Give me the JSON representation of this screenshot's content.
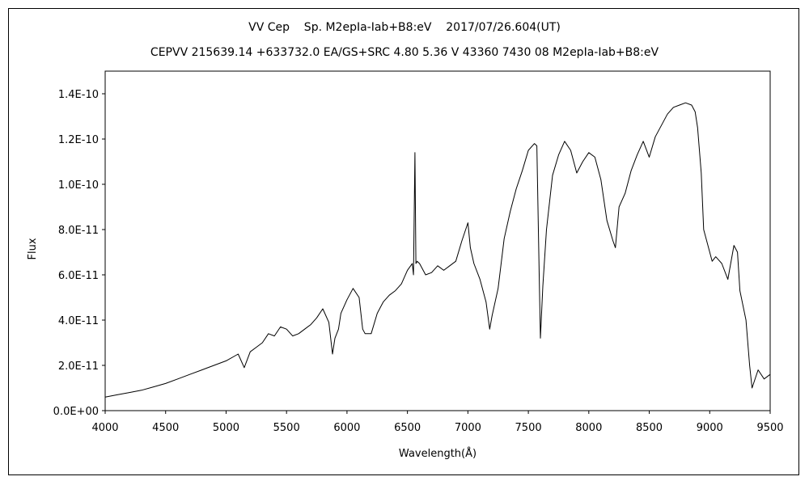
{
  "chart_data": {
    "type": "line",
    "title": "VV Cep    Sp. M2epIa-Iab+B8:eV    2017/07/26.604(UT)",
    "subtitle": "CEPVV 215639.14 +633732.0 EA/GS+SRC 4.80 5.36 V 43360 7430 08 M2epIa-Iab+B8:eV",
    "xlabel": "Wavelength(Å)",
    "ylabel": "Flux",
    "xlim": [
      4000,
      9500
    ],
    "ylim": [
      0,
      1.5e-10
    ],
    "x_ticks": [
      4000,
      4500,
      5000,
      5500,
      6000,
      6500,
      7000,
      7500,
      8000,
      8500,
      9000,
      9500
    ],
    "x_tick_labels": [
      "4000",
      "4500",
      "5000",
      "5500",
      "6000",
      "6500",
      "7000",
      "7500",
      "8000",
      "8500",
      "9000",
      "9500"
    ],
    "y_ticks": [
      0,
      2e-11,
      4e-11,
      6e-11,
      8e-11,
      1e-10,
      1.2e-10,
      1.4e-10
    ],
    "y_tick_labels": [
      "0.0E+00",
      "2.0E-11",
      "4.0E-11",
      "6.0E-11",
      "8.0E-11",
      "1.0E-10",
      "1.2E-10",
      "1.4E-10"
    ],
    "grid": false,
    "legend": "none",
    "series": [
      {
        "color": "#000000",
        "x": [
          4000,
          4100,
          4200,
          4300,
          4400,
          4500,
          4600,
          4700,
          4800,
          4900,
          5000,
          5100,
          5150,
          5200,
          5250,
          5300,
          5350,
          5400,
          5450,
          5500,
          5550,
          5600,
          5650,
          5700,
          5750,
          5800,
          5850,
          5880,
          5900,
          5930,
          5950,
          6000,
          6050,
          6100,
          6130,
          6150,
          6200,
          6250,
          6300,
          6350,
          6400,
          6450,
          6500,
          6540,
          6550,
          6562,
          6570,
          6580,
          6600,
          6650,
          6700,
          6750,
          6800,
          6850,
          6900,
          6950,
          7000,
          7020,
          7050,
          7100,
          7150,
          7180,
          7200,
          7250,
          7300,
          7350,
          7400,
          7450,
          7500,
          7550,
          7570,
          7590,
          7600,
          7620,
          7650,
          7700,
          7750,
          7800,
          7850,
          7900,
          7950,
          8000,
          8050,
          8100,
          8150,
          8200,
          8220,
          8250,
          8300,
          8350,
          8400,
          8450,
          8500,
          8550,
          8600,
          8650,
          8700,
          8750,
          8800,
          8850,
          8880,
          8900,
          8930,
          8950,
          9000,
          9020,
          9050,
          9100,
          9150,
          9200,
          9230,
          9250,
          9300,
          9330,
          9350,
          9400,
          9450,
          9500
        ],
        "y": [
          6e-12,
          7e-12,
          8e-12,
          9e-12,
          1.05e-11,
          1.2e-11,
          1.4e-11,
          1.6e-11,
          1.8e-11,
          2e-11,
          2.2e-11,
          2.5e-11,
          1.9e-11,
          2.6e-11,
          2.8e-11,
          3e-11,
          3.4e-11,
          3.3e-11,
          3.7e-11,
          3.6e-11,
          3.3e-11,
          3.4e-11,
          3.6e-11,
          3.8e-11,
          4.1e-11,
          4.5e-11,
          3.9e-11,
          2.5e-11,
          3.2e-11,
          3.6e-11,
          4.3e-11,
          4.9e-11,
          5.4e-11,
          5e-11,
          3.6e-11,
          3.4e-11,
          3.4e-11,
          4.3e-11,
          4.8e-11,
          5.1e-11,
          5.3e-11,
          5.6e-11,
          6.2e-11,
          6.5e-11,
          6e-11,
          1.14e-10,
          6.5e-11,
          6.6e-11,
          6.5e-11,
          6e-11,
          6.1e-11,
          6.4e-11,
          6.2e-11,
          6.4e-11,
          6.6e-11,
          7.5e-11,
          8.3e-11,
          7.2e-11,
          6.5e-11,
          5.8e-11,
          4.8e-11,
          3.6e-11,
          4.2e-11,
          5.4e-11,
          7.6e-11,
          8.8e-11,
          9.8e-11,
          1.06e-10,
          1.15e-10,
          1.18e-10,
          1.17e-10,
          6e-11,
          3.2e-11,
          5.5e-11,
          8e-11,
          1.04e-10,
          1.13e-10,
          1.19e-10,
          1.15e-10,
          1.05e-10,
          1.1e-10,
          1.14e-10,
          1.12e-10,
          1.02e-10,
          8.4e-11,
          7.5e-11,
          7.2e-11,
          9e-11,
          9.6e-11,
          1.06e-10,
          1.13e-10,
          1.19e-10,
          1.12e-10,
          1.21e-10,
          1.26e-10,
          1.31e-10,
          1.34e-10,
          1.35e-10,
          1.36e-10,
          1.35e-10,
          1.32e-10,
          1.25e-10,
          1.05e-10,
          8e-11,
          7e-11,
          6.6e-11,
          6.8e-11,
          6.5e-11,
          5.8e-11,
          7.3e-11,
          7e-11,
          5.3e-11,
          4e-11,
          2e-11,
          1e-11,
          1.8e-11,
          1.4e-11,
          1.6e-11
        ]
      }
    ]
  }
}
